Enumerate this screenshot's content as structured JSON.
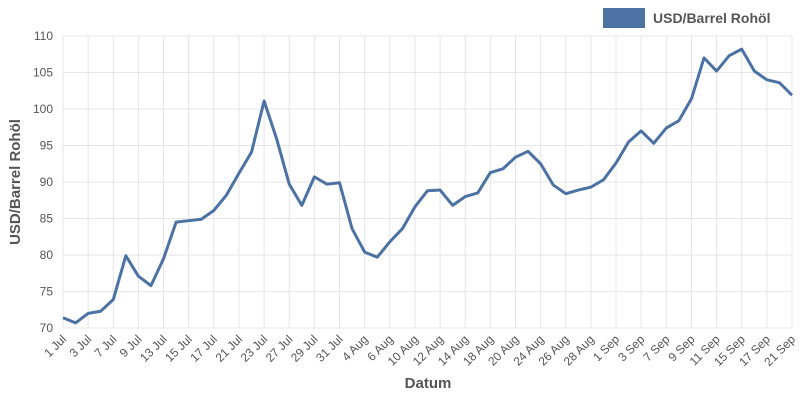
{
  "chart_data": {
    "type": "line",
    "x_label": "Datum",
    "y_label": "USD/Barrel Rohöl",
    "categories": [
      "1 Jul",
      null,
      "3 Jul",
      null,
      "7 Jul",
      null,
      "9 Jul",
      null,
      "13 Jul",
      null,
      "15 Jul",
      null,
      "17 Jul",
      null,
      "21 Jul",
      null,
      "23 Jul",
      null,
      "27 Jul",
      null,
      "29 Jul",
      null,
      "31 Jul",
      null,
      "4 Aug",
      null,
      "6 Aug",
      null,
      "10 Aug",
      null,
      "12 Aug",
      null,
      "14 Aug",
      null,
      "18 Aug",
      null,
      "20 Aug",
      null,
      "24 Aug",
      null,
      "26 Aug",
      null,
      "28 Aug",
      null,
      "1 Sep",
      null,
      "3 Sep",
      null,
      "7 Sep",
      null,
      "9 Sep",
      null,
      "11 Sep",
      null,
      "15 Sep",
      null,
      "17 Sep",
      null,
      "21 Sep"
    ],
    "series": [
      {
        "name": "USD/Barrel Rohöl",
        "color": "#4c72a3",
        "values": [
          71.4,
          70.7,
          72.0,
          72.3,
          73.9,
          79.9,
          77.1,
          75.8,
          79.5,
          84.5,
          84.7,
          84.9,
          86.1,
          88.2,
          91.2,
          94.1,
          101.1,
          95.9,
          89.7,
          86.8,
          90.7,
          89.7,
          89.9,
          83.6,
          80.4,
          79.7,
          81.8,
          83.6,
          86.6,
          88.8,
          88.9,
          86.8,
          88.0,
          88.5,
          91.3,
          91.8,
          93.4,
          94.2,
          92.5,
          89.6,
          88.4,
          88.9,
          89.3,
          90.3,
          92.6,
          95.5,
          97.0,
          95.3,
          97.4,
          98.4,
          101.4,
          107.0,
          105.2,
          107.3,
          108.2,
          105.2,
          104.0,
          103.6,
          101.9
        ]
      }
    ],
    "ylim": [
      70,
      110
    ],
    "yticks": [
      70,
      75,
      80,
      85,
      90,
      95,
      100,
      105,
      110
    ],
    "grid": true,
    "legend": "top-right"
  }
}
